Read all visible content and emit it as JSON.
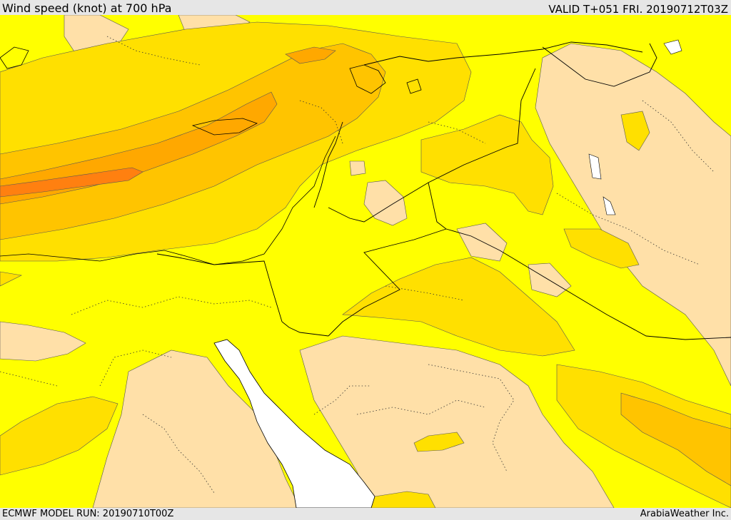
{
  "header": {
    "title": "Wind speed (knot) at 700 hPa",
    "valid": "VALID T+051 FRI. 20190712T03Z"
  },
  "footer": {
    "model_run": "ECMWF MODEL RUN: 20190710T00Z",
    "credit": "ArabiaWeather Inc."
  },
  "colors": {
    "calm": "#ffe0a8",
    "light": "#ffff00",
    "moderate": "#ffe000",
    "fresh": "#ffc400",
    "strong": "#ffa800",
    "very_strong": "#ff8010",
    "water": "#ffffff"
  }
}
